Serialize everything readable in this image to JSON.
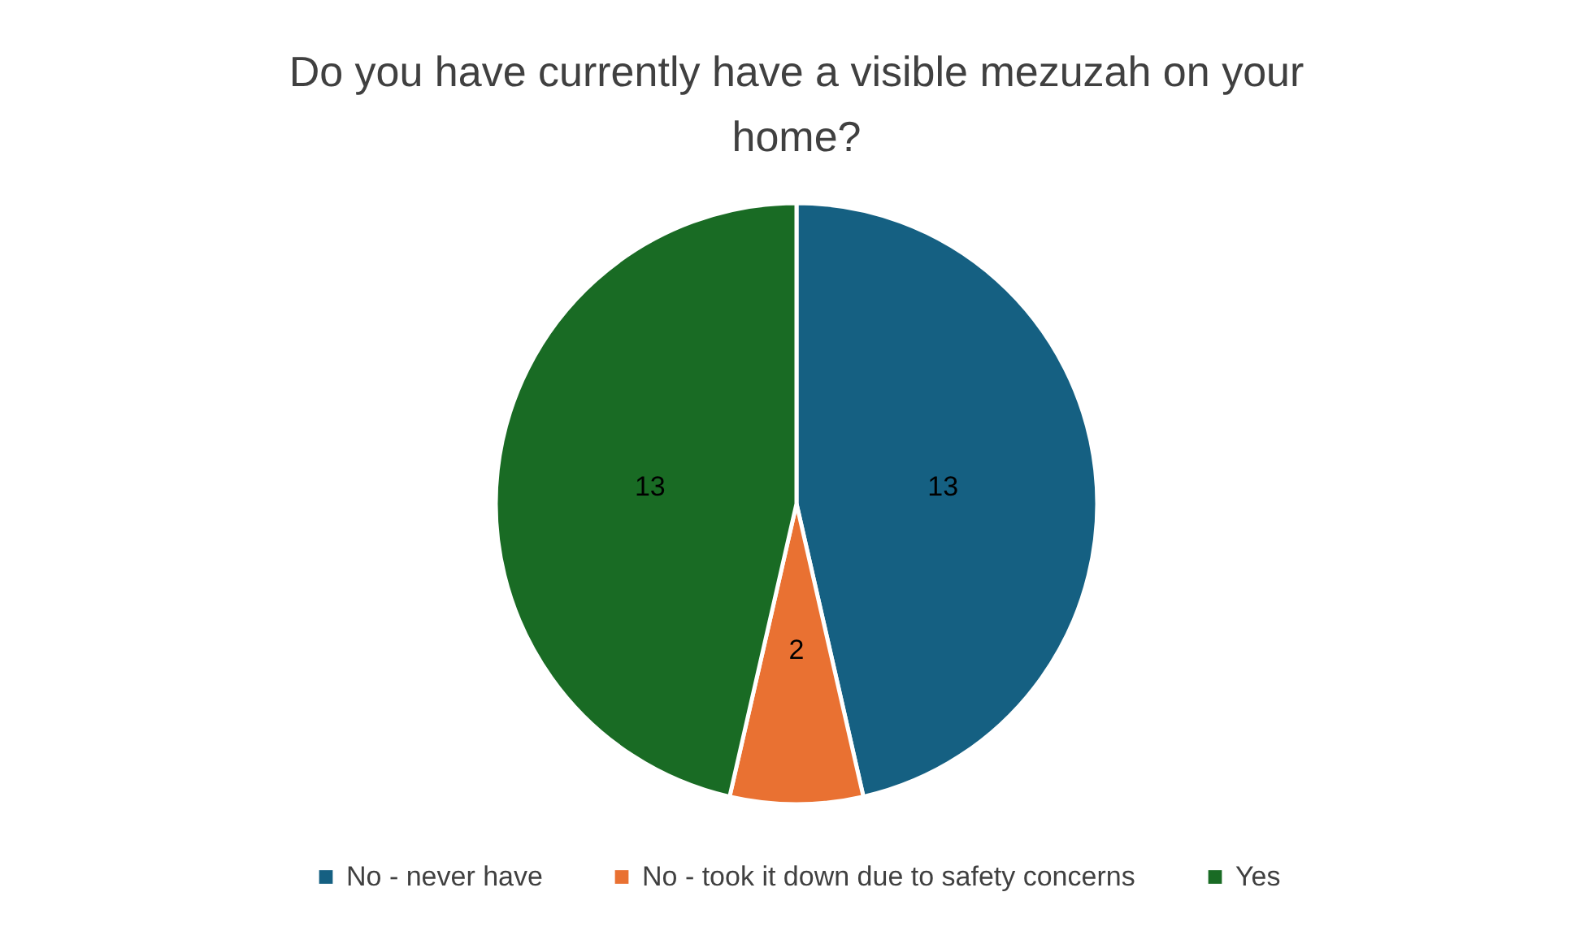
{
  "chart_data": {
    "type": "pie",
    "title": "Do you have currently have a visible mezuzah on your home?",
    "categories": [
      "No - never have",
      "No - took it down due to safety concerns",
      "Yes"
    ],
    "values": [
      13,
      2,
      13
    ],
    "colors": [
      "#156082",
      "#e97132",
      "#196b24"
    ],
    "data_labels": true,
    "legend": "bottom"
  }
}
